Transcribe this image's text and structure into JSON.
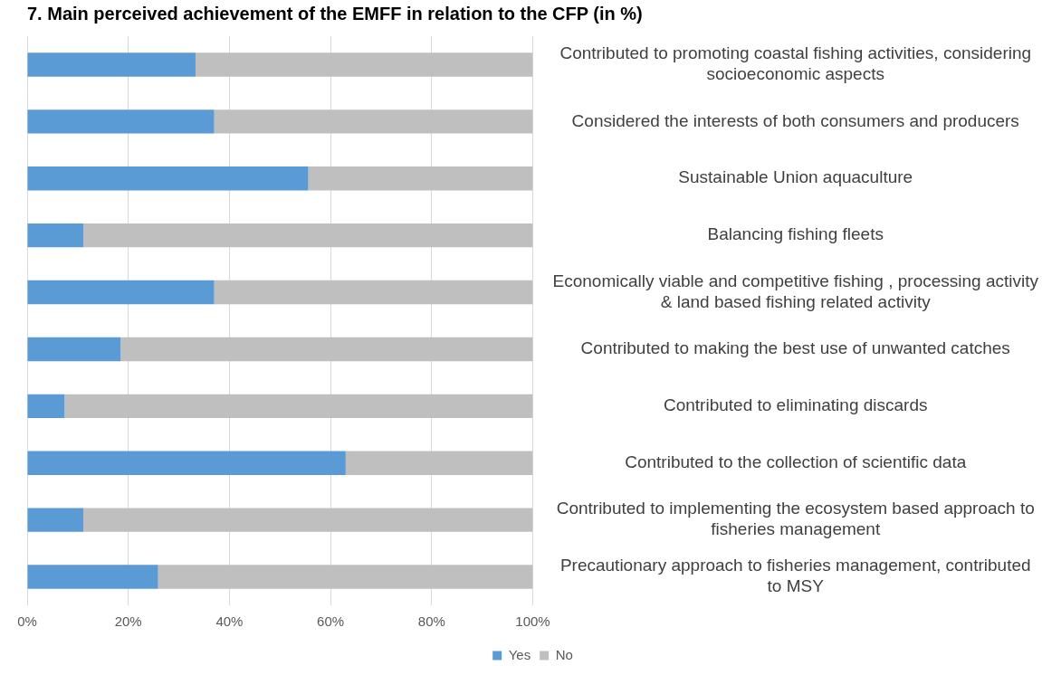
{
  "chart_data": {
    "type": "bar",
    "orientation": "horizontal",
    "stacked": true,
    "title": "7. Main perceived achievement of the EMFF in relation to the CFP (in %)",
    "categories": [
      "Contributed to promoting coastal fishing activities, considering socioeconomic aspects",
      "Considered the interests of both consumers and producers",
      "Sustainable Union aquaculture",
      "Balancing fishing fleets",
      "Economically viable and competitive fishing , processing activity & land based fishing related activity",
      "Contributed to making the best use of unwanted catches",
      "Contributed to eliminating discards",
      "Contributed to the collection of scientific data",
      "Contributed to implementing the ecosystem based approach to fisheries management",
      "Precautionary approach to fisheries management, contributed to MSY"
    ],
    "series": [
      {
        "name": "Yes",
        "color": "#5b9bd5",
        "values": [
          33.3,
          37.0,
          55.6,
          11.1,
          37.0,
          18.5,
          7.4,
          63.0,
          11.1,
          25.9
        ]
      },
      {
        "name": "No",
        "color": "#bfbfbf",
        "values": [
          66.7,
          63.0,
          44.4,
          88.9,
          63.0,
          81.5,
          92.6,
          37.0,
          88.9,
          74.1
        ]
      }
    ],
    "xlim": [
      0,
      100
    ],
    "xticks": [
      {
        "value": 0,
        "label": "0%"
      },
      {
        "value": 20,
        "label": "20%"
      },
      {
        "value": 40,
        "label": "40%"
      },
      {
        "value": 60,
        "label": "60%"
      },
      {
        "value": 80,
        "label": "80%"
      },
      {
        "value": 100,
        "label": "100%"
      }
    ],
    "grid": "x",
    "legend": "bottom"
  }
}
